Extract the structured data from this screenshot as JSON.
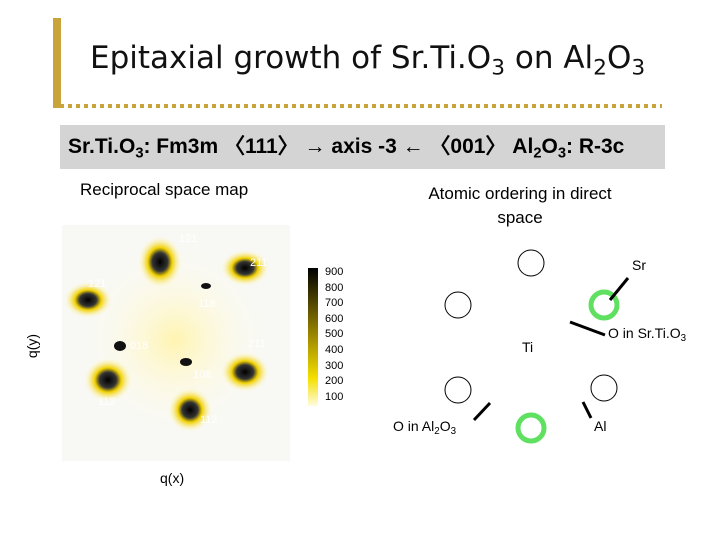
{
  "slide": {
    "title": [
      {
        "t": "Epitaxial growth of Sr.Ti.O"
      },
      {
        "sub": "3"
      },
      {
        "t": " on Al"
      },
      {
        "sub": "2"
      },
      {
        "t": "O"
      },
      {
        "sub": "3"
      }
    ],
    "banner": [
      {
        "t": "Sr.Ti.O"
      },
      {
        "sub": "3"
      },
      {
        "t": ": Fm3m 〈111〉 → axis -3 ← 〈001〉 Al"
      },
      {
        "sub": "2"
      },
      {
        "t": "O"
      },
      {
        "sub": "3"
      },
      {
        "t": ": R-3c"
      }
    ],
    "left_caption": "Reciprocal space map",
    "right_caption": "Atomic ordering in direct space",
    "map": {
      "spot_labels": [
        "121",
        "211",
        "121",
        "118",
        "018",
        "211",
        "108",
        "112",
        "112"
      ],
      "x_label": "q(x)",
      "y_label": "q(y)",
      "colorbar_ticks": [
        900,
        800,
        700,
        600,
        500,
        400,
        300,
        200,
        100
      ]
    },
    "diagram": {
      "sr": "Sr",
      "ti": "Ti",
      "o_srtio3": [
        {
          "t": "O in Sr.Ti.O"
        },
        {
          "sub": "3"
        }
      ],
      "o_al2o3": [
        {
          "t": "O in Al"
        },
        {
          "sub": "2"
        },
        {
          "t": "O"
        },
        {
          "sub": "3"
        }
      ],
      "al": "Al"
    }
  }
}
